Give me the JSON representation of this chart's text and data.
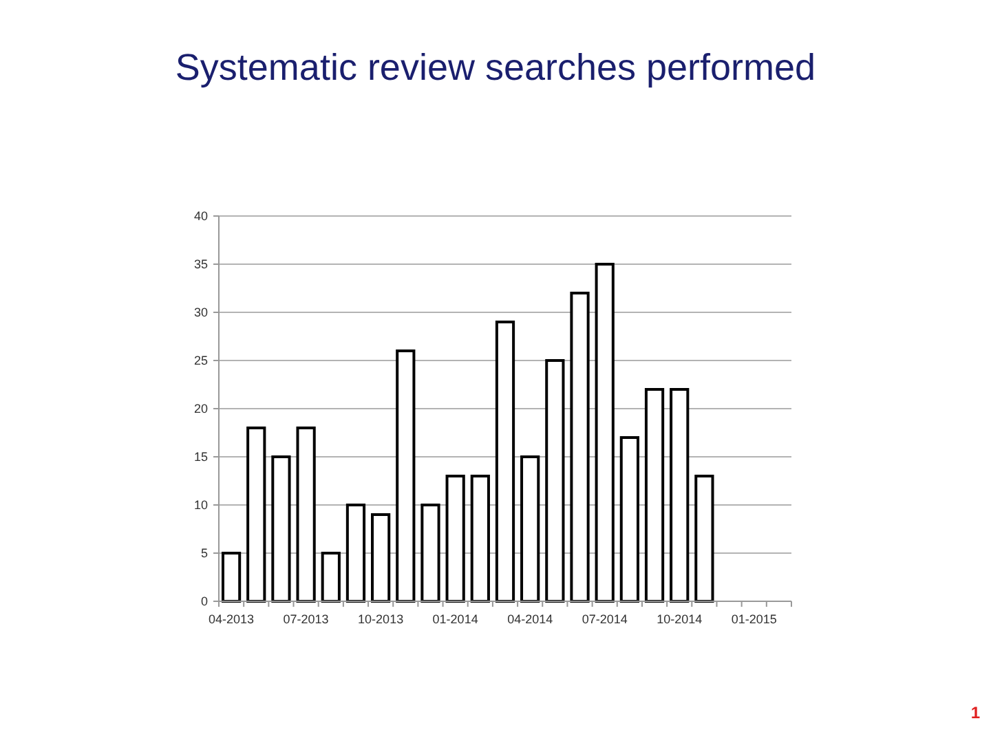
{
  "chart_data": {
    "type": "bar",
    "title": "Systematic review searches performed",
    "categories": [
      "04-2013",
      null,
      null,
      "07-2013",
      null,
      null,
      "10-2013",
      null,
      null,
      "01-2014",
      null,
      null,
      "04-2014",
      null,
      null,
      "07-2014",
      null,
      null,
      "10-2014",
      null,
      null,
      "01-2015",
      null
    ],
    "values": [
      5,
      18,
      15,
      18,
      5,
      10,
      9,
      26,
      10,
      13,
      13,
      29,
      15,
      25,
      32,
      35,
      17,
      22,
      22,
      13,
      null,
      null,
      null
    ],
    "color": "#ffffff",
    "ylim": [
      0,
      40
    ],
    "yticks": [
      0,
      5,
      10,
      15,
      20,
      25,
      30,
      35,
      40
    ],
    "grid": true,
    "annotations": [
      "1"
    ]
  }
}
